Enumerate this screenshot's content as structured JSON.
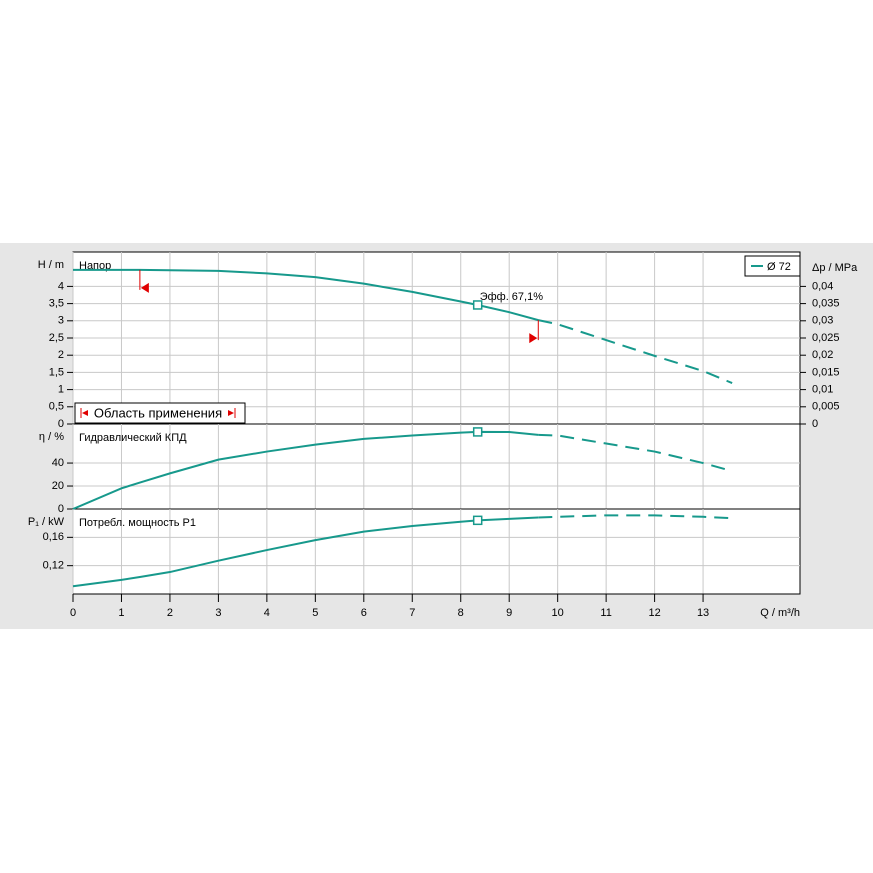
{
  "chart_data": [
    {
      "type": "line",
      "title": "Напор",
      "ylabel": "H / m",
      "y2label": "Δp / MPa",
      "x": [
        0,
        1,
        1.38,
        2,
        3,
        4,
        5,
        6,
        7,
        8,
        8.35,
        9,
        9.6,
        10,
        11,
        12,
        13,
        13.6
      ],
      "xlim": [
        0,
        15
      ],
      "ylim": [
        0,
        5
      ],
      "yticks": [
        0,
        {
          "value": 0.5,
          "label": "0,5"
        },
        1,
        {
          "value": 1.5,
          "label": "1,5"
        },
        2,
        {
          "value": 2.5,
          "label": "2,5"
        },
        3,
        {
          "value": 3.5,
          "label": "3,5"
        },
        4
      ],
      "y2lim": [
        0,
        0.05
      ],
      "y2ticks": [
        0,
        {
          "value": 0.005,
          "label": "0,005"
        },
        {
          "value": 0.01,
          "label": "0,01"
        },
        {
          "value": 0.015,
          "label": "0,015"
        },
        {
          "value": 0.02,
          "label": "0,02"
        },
        {
          "value": 0.025,
          "label": "0,025"
        },
        {
          "value": 0.03,
          "label": "0,03"
        },
        {
          "value": 0.035,
          "label": "0,035"
        },
        {
          "value": 0.04,
          "label": "0,04"
        }
      ],
      "series": [
        {
          "name": "Ø 72",
          "color": "#17998c",
          "values": [
            4.48,
            4.48,
            4.48,
            4.47,
            4.45,
            4.38,
            4.27,
            4.08,
            3.84,
            3.56,
            3.46,
            3.25,
            3.02,
            2.9,
            2.44,
            1.98,
            1.54,
            1.19
          ]
        }
      ],
      "annotation": {
        "text": "Эфф.  67,1%",
        "x": 8.35
      },
      "application_range": {
        "label": "Область применения",
        "x": [
          1.38,
          9.6
        ]
      },
      "grid": true
    },
    {
      "type": "line",
      "title": "Гидравлический КПД",
      "ylabel": "η / %",
      "x": [
        0,
        1,
        1.38,
        2,
        3,
        4,
        5,
        6,
        7,
        8,
        8.35,
        9,
        9.6,
        10,
        11,
        12,
        13,
        13.6
      ],
      "xlim": [
        0,
        15
      ],
      "ylim": [
        0,
        74
      ],
      "yticks": [
        0,
        20,
        40
      ],
      "series": [
        {
          "name": "Ø 72",
          "color": "#17998c",
          "values": [
            0,
            18,
            23,
            31,
            43,
            50,
            56,
            61,
            64,
            66.5,
            67.1,
            67,
            64.5,
            64,
            57,
            50,
            40,
            33
          ]
        }
      ],
      "grid": true
    },
    {
      "type": "line",
      "title": "Потребл. мощность P1",
      "ylabel": "P₁ / kW",
      "xlabel": "Q / m³/h",
      "x": [
        0,
        1,
        1.38,
        2,
        3,
        4,
        5,
        6,
        7,
        8,
        8.35,
        9,
        9.6,
        10,
        11,
        12,
        13,
        13.6
      ],
      "xlim": [
        0,
        15
      ],
      "ylim": [
        0.08,
        0.2
      ],
      "yticks": [
        {
          "value": 0.12,
          "label": "0,12"
        },
        {
          "value": 0.16,
          "label": "0,16"
        }
      ],
      "xticks": [
        0,
        1,
        2,
        3,
        4,
        5,
        6,
        7,
        8,
        9,
        10,
        11,
        12,
        13
      ],
      "series": [
        {
          "name": "Ø 72",
          "color": "#17998c",
          "values": [
            0.091,
            0.1,
            0.104,
            0.111,
            0.127,
            0.142,
            0.156,
            0.168,
            0.176,
            0.182,
            0.184,
            0.186,
            0.188,
            0.189,
            0.191,
            0.191,
            0.189,
            0.187
          ]
        }
      ],
      "grid": true
    }
  ]
}
